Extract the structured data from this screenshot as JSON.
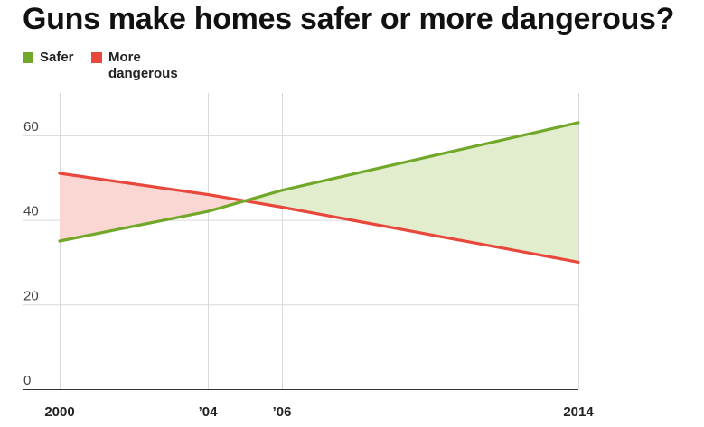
{
  "chart_data": {
    "type": "line",
    "title": "Guns make homes safer or more dangerous?",
    "x": [
      2000,
      2004,
      2006,
      2014
    ],
    "x_tick_labels": [
      "2000",
      "’04",
      "’06",
      "2014"
    ],
    "y_ticks": [
      0,
      20,
      40,
      60
    ],
    "y_tick_labels": [
      "0",
      "20",
      "40",
      "60"
    ],
    "ylim": [
      0,
      70
    ],
    "xlim": [
      2000,
      2014
    ],
    "grid": true,
    "legend_position": "top-left",
    "series": [
      {
        "name": "Safer",
        "color": "#72a82a",
        "fill": "#e1edcc",
        "values": [
          35,
          42,
          47,
          63
        ]
      },
      {
        "name_lines": [
          "More",
          "dangerous"
        ],
        "color": "#e8483c",
        "fill": "#fbd7d3",
        "values": [
          51,
          46,
          43,
          30
        ]
      }
    ]
  }
}
